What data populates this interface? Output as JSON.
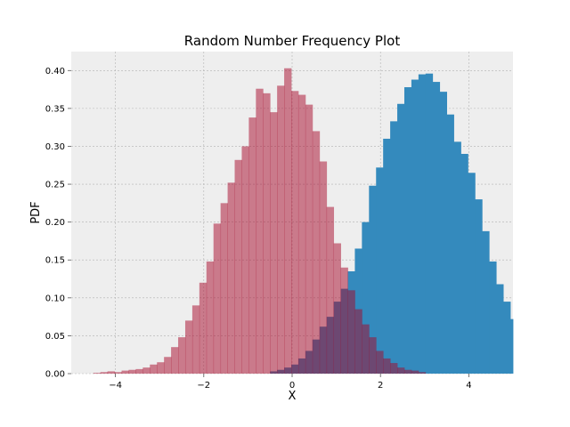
{
  "chart_data": {
    "type": "bar",
    "title": "Random Number Frequency Plot",
    "xlabel": "X",
    "ylabel": "PDF",
    "xlim": [
      -5,
      5
    ],
    "ylim": [
      0,
      0.425
    ],
    "grid": true,
    "legend": "none",
    "bin_width": 0.16,
    "x_ticks": [
      -4,
      -2,
      0,
      2,
      4
    ],
    "x_tick_labels": [
      "−4",
      "−2",
      "0",
      "2",
      "4"
    ],
    "y_ticks": [
      0,
      0.05,
      0.1,
      0.15,
      0.2,
      0.25,
      0.3,
      0.35,
      0.4
    ],
    "y_tick_labels": [
      "0.00",
      "0.05",
      "0.10",
      "0.15",
      "0.20",
      "0.25",
      "0.30",
      "0.35",
      "0.40"
    ],
    "series": [
      {
        "color": "#348abd",
        "opacity": 1,
        "bin_start": -0.5,
        "values": [
          0.003,
          0.005,
          0.008,
          0.012,
          0.02,
          0.03,
          0.045,
          0.062,
          0.075,
          0.095,
          0.112,
          0.135,
          0.165,
          0.2,
          0.248,
          0.272,
          0.31,
          0.333,
          0.356,
          0.378,
          0.388,
          0.395,
          0.396,
          0.385,
          0.372,
          0.342,
          0.306,
          0.29,
          0.265,
          0.23,
          0.188,
          0.148,
          0.118,
          0.095,
          0.072,
          0.046,
          0.035,
          0.028,
          0.018,
          0.012,
          0.005
        ]
      },
      {
        "color": "#a60628",
        "opacity": 0.5,
        "bin_start": -4.5,
        "values": [
          0.001,
          0.002,
          0.003,
          0.002,
          0.004,
          0.005,
          0.006,
          0.008,
          0.012,
          0.015,
          0.022,
          0.035,
          0.048,
          0.07,
          0.09,
          0.12,
          0.148,
          0.198,
          0.225,
          0.252,
          0.282,
          0.3,
          0.338,
          0.376,
          0.37,
          0.345,
          0.38,
          0.403,
          0.373,
          0.368,
          0.355,
          0.32,
          0.28,
          0.22,
          0.172,
          0.14,
          0.11,
          0.085,
          0.065,
          0.048,
          0.03,
          0.02,
          0.014,
          0.008,
          0.005,
          0.004,
          0.002
        ]
      }
    ]
  }
}
